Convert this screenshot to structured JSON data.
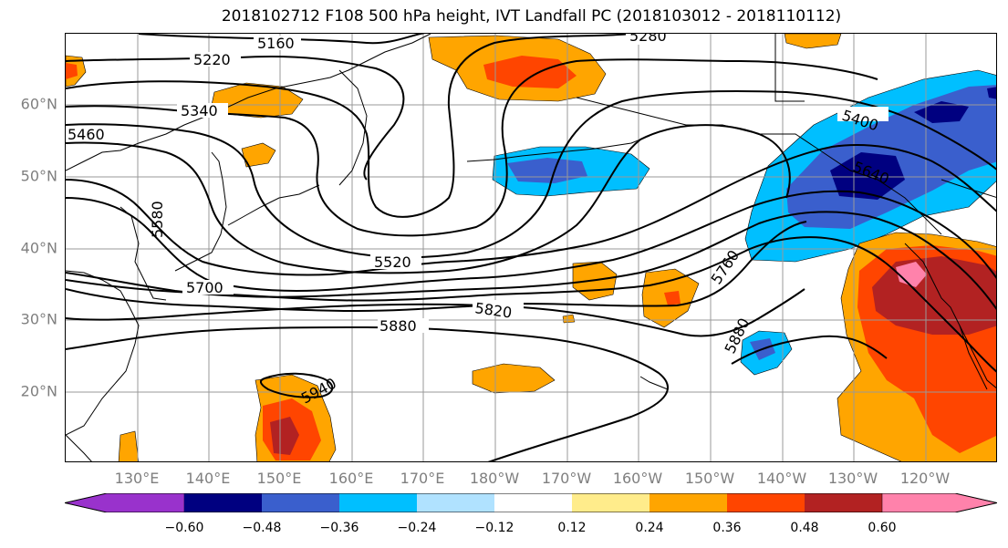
{
  "title": "2018102712 F108 500 hPa height, IVT Landfall PC (2018103012 - 2018110112)",
  "latitudes": [
    {
      "value": 60,
      "label": "60°N"
    },
    {
      "value": 50,
      "label": "50°N"
    },
    {
      "value": 40,
      "label": "40°N"
    },
    {
      "value": 30,
      "label": "30°N"
    },
    {
      "value": 20,
      "label": "20°N"
    }
  ],
  "longitudes": [
    {
      "value": 130,
      "label": "130°E"
    },
    {
      "value": 140,
      "label": "140°E"
    },
    {
      "value": 150,
      "label": "150°E"
    },
    {
      "value": 160,
      "label": "160°E"
    },
    {
      "value": 170,
      "label": "170°E"
    },
    {
      "value": 180,
      "label": "180°W"
    },
    {
      "value": 190,
      "label": "170°W"
    },
    {
      "value": 200,
      "label": "160°W"
    },
    {
      "value": 210,
      "label": "150°W"
    },
    {
      "value": 220,
      "label": "140°W"
    },
    {
      "value": 230,
      "label": "130°W"
    },
    {
      "value": 240,
      "label": "120°W"
    }
  ],
  "contour_labels": [
    "5160",
    "5220",
    "5280",
    "5340",
    "5400",
    "5460",
    "5580",
    "5520",
    "5640",
    "5700",
    "5760",
    "5820",
    "5880",
    "5880",
    "5940"
  ],
  "colorbar": {
    "colors": [
      "#9932cc",
      "#000080",
      "#3a5fcd",
      "#00bfff",
      "#b0e2ff",
      "#ffffff",
      "#ffec8b",
      "#ffa500",
      "#ff4500",
      "#b22222",
      "#ff82ab"
    ],
    "ticks": [
      "−0.60",
      "−0.48",
      "−0.36",
      "−0.24",
      "−0.12",
      "0.12",
      "0.24",
      "0.36",
      "0.48",
      "0.60"
    ]
  },
  "shading_colors": {
    "neg_light": "#00bfff",
    "neg_mid": "#3a5fcd",
    "neg_strong": "#000080",
    "pos_light": "#ffa500",
    "pos_mid": "#ff4500",
    "pos_strong": "#b22222",
    "pos_max": "#ff82ab",
    "pos_pale": "#ffec8b"
  }
}
